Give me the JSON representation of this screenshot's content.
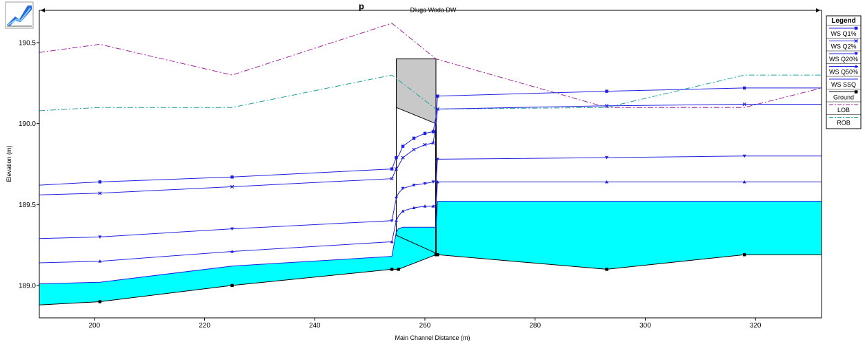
{
  "chart_data": {
    "type": "line",
    "title": "",
    "title_partial": "p",
    "reach_label": "Dluga Woda DW",
    "xlabel": "Main Channel Distance (m)",
    "ylabel": "Elevation (m)",
    "xlim": [
      190,
      332
    ],
    "ylim": [
      188.8,
      190.7
    ],
    "xticks": [
      200,
      220,
      240,
      260,
      280,
      300,
      320
    ],
    "yticks": [
      189.0,
      189.5,
      190.0,
      190.5
    ],
    "ytick_labels": [
      "189.0",
      "189.5",
      "190.0",
      "190.5"
    ],
    "legend": {
      "title": "Legend",
      "placement": "right",
      "entries": [
        "WS  Q1%",
        "WS  Q2%",
        "WS  Q20%",
        "WS  Q50%",
        "WS  SSQ",
        "Ground",
        "LOB",
        "ROB"
      ]
    },
    "colors": {
      "ws": "#1f1fe0",
      "ground": "#000000",
      "lob": "#a020a0",
      "rob": "#20a0a0",
      "water": "#00ffff",
      "structure": "#c8c8c8"
    },
    "series": [
      {
        "name": "WS  Q1%",
        "marker": "square",
        "x": [
          190,
          201,
          225,
          254,
          254.8,
          255.2,
          256,
          258,
          260,
          261.5,
          262,
          262.3,
          293,
          318,
          332
        ],
        "y": [
          189.62,
          189.64,
          189.67,
          189.72,
          189.79,
          189.8,
          189.86,
          189.91,
          189.94,
          189.95,
          190.04,
          190.17,
          190.2,
          190.22,
          190.22
        ],
        "markers_x": [
          201,
          225,
          254,
          254.8,
          256,
          258,
          260,
          261.5,
          262.3,
          293,
          318
        ],
        "markers_y": [
          189.64,
          189.67,
          189.72,
          189.79,
          189.86,
          189.91,
          189.94,
          189.95,
          190.17,
          190.2,
          190.22
        ]
      },
      {
        "name": "WS  Q2%",
        "marker": "x",
        "x": [
          190,
          201,
          225,
          254,
          254.8,
          255.2,
          256,
          258,
          260,
          261.5,
          262,
          262.3,
          293,
          318,
          332
        ],
        "y": [
          189.56,
          189.57,
          189.61,
          189.66,
          189.72,
          189.74,
          189.79,
          189.84,
          189.87,
          189.88,
          189.99,
          190.09,
          190.11,
          190.12,
          190.12
        ],
        "markers_x": [
          201,
          225,
          254,
          254.8,
          256,
          258,
          260,
          261.5,
          262.3,
          293,
          318
        ],
        "markers_y": [
          189.57,
          189.61,
          189.66,
          189.72,
          189.79,
          189.84,
          189.87,
          189.88,
          190.09,
          190.11,
          190.12
        ]
      },
      {
        "name": "WS  Q20%",
        "marker": "triangle-down",
        "x": [
          190,
          201,
          225,
          254,
          254.8,
          255.2,
          256,
          258,
          260,
          261.5,
          262,
          262.3,
          293,
          318,
          332
        ],
        "y": [
          189.29,
          189.3,
          189.35,
          189.4,
          189.54,
          189.57,
          189.6,
          189.62,
          189.63,
          189.64,
          189.64,
          189.78,
          189.79,
          189.8,
          189.8
        ],
        "markers_x": [
          201,
          225,
          254,
          254.8,
          256,
          258,
          260,
          261.5,
          262.3,
          293,
          318
        ],
        "markers_y": [
          189.3,
          189.35,
          189.4,
          189.54,
          189.6,
          189.62,
          189.63,
          189.64,
          189.78,
          189.79,
          189.8
        ]
      },
      {
        "name": "WS  Q50%",
        "marker": "triangle-up",
        "x": [
          190,
          201,
          225,
          254,
          254.8,
          255.2,
          256,
          258,
          260,
          261.5,
          262,
          262.3,
          293,
          318,
          332
        ],
        "y": [
          189.14,
          189.15,
          189.21,
          189.27,
          189.4,
          189.43,
          189.46,
          189.48,
          189.49,
          189.49,
          189.5,
          189.64,
          189.64,
          189.64,
          189.64
        ],
        "markers_x": [
          201,
          225,
          254,
          254.8,
          256,
          258,
          260,
          261.5,
          262.3,
          293,
          318
        ],
        "markers_y": [
          189.15,
          189.21,
          189.27,
          189.4,
          189.46,
          189.48,
          189.49,
          189.49,
          189.64,
          189.64,
          189.64
        ]
      },
      {
        "name": "WS  SSQ",
        "marker": "none",
        "x": [
          190,
          201,
          225,
          254,
          254.8,
          255.2,
          256,
          258,
          260,
          261.5,
          262,
          262.3,
          293,
          318,
          332
        ],
        "y": [
          189.01,
          189.02,
          189.12,
          189.18,
          189.33,
          189.35,
          189.36,
          189.36,
          189.36,
          189.36,
          189.36,
          189.52,
          189.52,
          189.52,
          189.52
        ]
      },
      {
        "name": "Ground",
        "marker": "filled-square",
        "x": [
          190,
          201,
          225,
          254,
          255.2,
          262,
          262.3,
          293,
          318,
          332
        ],
        "y": [
          188.88,
          188.9,
          189.0,
          189.1,
          189.1,
          189.19,
          189.19,
          189.1,
          189.19,
          189.19
        ],
        "markers_x": [
          201,
          225,
          254,
          255.2,
          262,
          262.3,
          293,
          318
        ],
        "markers_y": [
          188.9,
          189.0,
          189.1,
          189.1,
          189.19,
          189.19,
          189.1,
          189.19
        ]
      },
      {
        "name": "LOB",
        "marker": "none",
        "x": [
          190,
          201,
          225,
          254,
          262,
          293,
          318,
          332
        ],
        "y": [
          190.44,
          190.49,
          190.3,
          190.62,
          190.4,
          190.1,
          190.1,
          190.22
        ]
      },
      {
        "name": "ROB",
        "marker": "none",
        "x": [
          190,
          201,
          225,
          254,
          262,
          293,
          318,
          332
        ],
        "y": [
          190.08,
          190.1,
          190.1,
          190.3,
          190.09,
          190.1,
          190.3,
          190.3
        ]
      }
    ],
    "structure": {
      "name": "culvert",
      "x": [
        254.8,
        262
      ],
      "top": [
        190.4,
        190.4
      ],
      "deck_bottom": [
        190.1,
        190.0
      ],
      "invert": [
        189.31,
        189.2
      ]
    },
    "grid": false
  }
}
